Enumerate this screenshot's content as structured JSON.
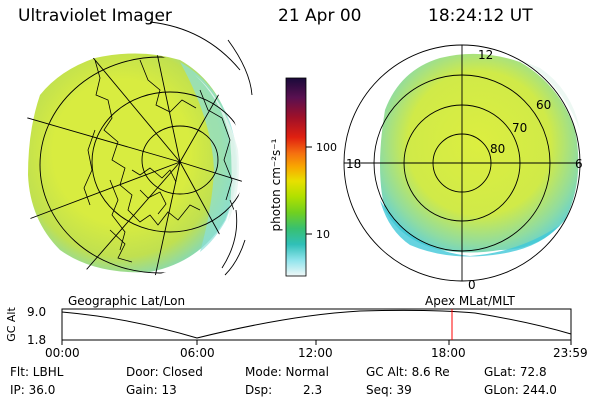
{
  "header": {
    "title": "Ultraviolet Imager",
    "date": "21 Apr 00",
    "time": "18:24:12 UT"
  },
  "colorbar": {
    "unit_label": "photon cm⁻²s⁻¹",
    "ticks": [
      "100",
      "10"
    ],
    "colors": [
      "#1a0a3a",
      "#2b0b4f",
      "#5a1050",
      "#8a1038",
      "#c01018",
      "#e83010",
      "#f57010",
      "#f8a000",
      "#f0d000",
      "#d8e800",
      "#a8e000",
      "#70d020",
      "#40c060",
      "#30c0b0",
      "#50d0e0",
      "#b0eef0",
      "#e8f8f8"
    ]
  },
  "left_map": {
    "caption": "Geographic Lat/Lon"
  },
  "right_map": {
    "caption": "Apex MLat/MLT",
    "lat_labels": [
      "60",
      "70",
      "80"
    ],
    "mlt_labels": {
      "top": "12",
      "left": "18",
      "right": "6",
      "bottom": "0"
    }
  },
  "altitude_strip": {
    "ylabel": "GC Alt",
    "yticks": [
      "9.0",
      "1.8"
    ],
    "xticks": [
      "00:00",
      "06:00",
      "12:00",
      "18:00",
      "23:59"
    ],
    "marker_time": "18:24",
    "marker_color": "#ff0000"
  },
  "info": {
    "flt": "Flt: LBHL",
    "door": "Door: Closed",
    "mode": "Mode: Normal",
    "gc_alt": "GC Alt: 8.6 Re",
    "glat": "GLat: 72.8",
    "ip": "IP: 36.0",
    "gain": "Gain: 13",
    "dsp_label": "Dsp:",
    "dsp_value": "2.3",
    "seq": "Seq: 39",
    "glon": "GLon: 244.0"
  }
}
